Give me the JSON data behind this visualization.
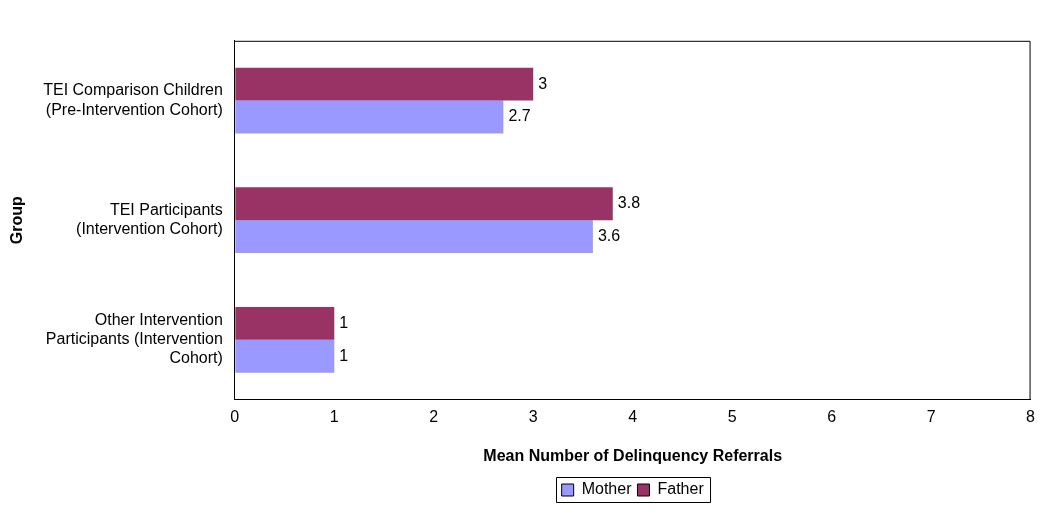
{
  "chart_data": {
    "type": "bar",
    "orientation": "horizontal",
    "xlabel": "Mean Number of Delinquency Referrals",
    "ylabel": "Group",
    "categories": [
      "TEI Comparison Children\n(Pre-Intervention Cohort)",
      "TEI Participants\n(Intervention Cohort)",
      "Other Intervention\nParticipants (Intervention\nCohort)"
    ],
    "series": [
      {
        "name": "Mother",
        "color": "#9999ff",
        "values": [
          2.7,
          3.6,
          1
        ]
      },
      {
        "name": "Father",
        "color": "#993366",
        "values": [
          3,
          3.8,
          1
        ]
      }
    ],
    "xlim": [
      0,
      8
    ],
    "xticks": [
      0,
      1,
      2,
      3,
      4,
      5,
      6,
      7,
      8
    ],
    "grid": false,
    "legend": "bottom",
    "data_labels": true
  }
}
